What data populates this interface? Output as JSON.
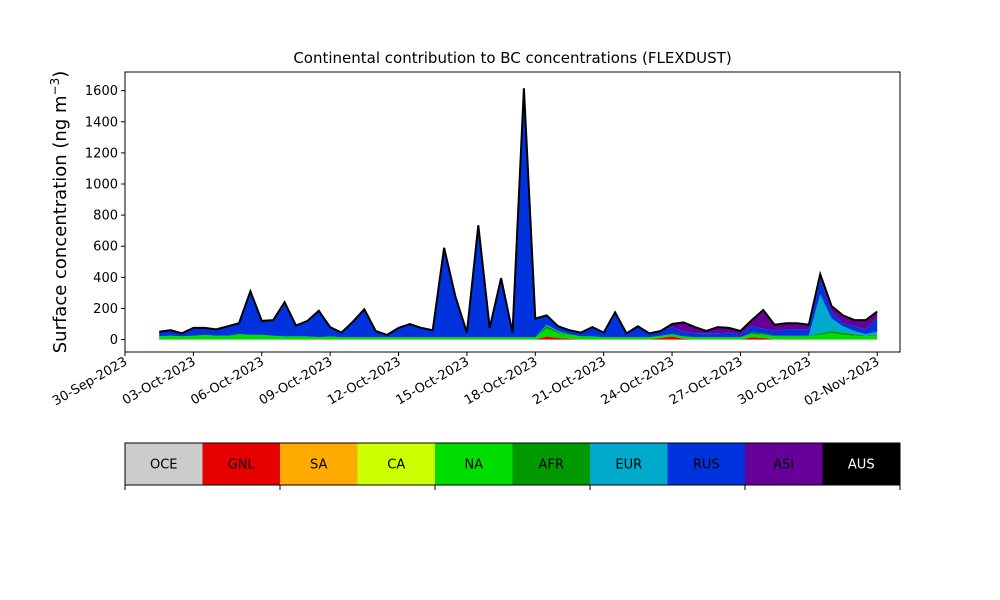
{
  "chart_data": {
    "type": "area",
    "stacked": true,
    "title": "Continental contribution to BC concentrations (FLEXDUST)",
    "ylabel_main": "Surface concentration (ng m",
    "ylabel_sup": "−3",
    "ylabel_close": ")",
    "xlabel": "",
    "ylim": [
      -80,
      1720
    ],
    "xlim": [
      "2023-09-30",
      "2023-11-03"
    ],
    "yticks": [
      0,
      200,
      400,
      600,
      800,
      1000,
      1200,
      1400,
      1600
    ],
    "xticks": [
      "30-Sep-2023",
      "03-Oct-2023",
      "06-Oct-2023",
      "09-Oct-2023",
      "12-Oct-2023",
      "15-Oct-2023",
      "18-Oct-2023",
      "21-Oct-2023",
      "24-Oct-2023",
      "27-Oct-2023",
      "30-Oct-2023",
      "02-Nov-2023"
    ],
    "grid": false,
    "legend_position": "colorbar-below",
    "x": [
      "2023-10-01T12:00",
      "2023-10-02T00:00",
      "2023-10-02T12:00",
      "2023-10-03T00:00",
      "2023-10-03T12:00",
      "2023-10-04T00:00",
      "2023-10-04T12:00",
      "2023-10-05T00:00",
      "2023-10-05T12:00",
      "2023-10-06T00:00",
      "2023-10-06T12:00",
      "2023-10-07T00:00",
      "2023-10-07T12:00",
      "2023-10-08T00:00",
      "2023-10-08T12:00",
      "2023-10-09T00:00",
      "2023-10-09T12:00",
      "2023-10-10T00:00",
      "2023-10-10T12:00",
      "2023-10-11T00:00",
      "2023-10-11T12:00",
      "2023-10-12T00:00",
      "2023-10-12T12:00",
      "2023-10-13T00:00",
      "2023-10-13T12:00",
      "2023-10-14T00:00",
      "2023-10-14T12:00",
      "2023-10-15T00:00",
      "2023-10-15T12:00",
      "2023-10-16T00:00",
      "2023-10-16T12:00",
      "2023-10-17T00:00",
      "2023-10-17T12:00",
      "2023-10-18T00:00",
      "2023-10-18T12:00",
      "2023-10-19T00:00",
      "2023-10-19T12:00",
      "2023-10-20T00:00",
      "2023-10-20T12:00",
      "2023-10-21T00:00",
      "2023-10-21T12:00",
      "2023-10-22T00:00",
      "2023-10-22T12:00",
      "2023-10-23T00:00",
      "2023-10-23T12:00",
      "2023-10-24T00:00",
      "2023-10-24T12:00",
      "2023-10-25T00:00",
      "2023-10-25T12:00",
      "2023-10-26T00:00",
      "2023-10-26T12:00",
      "2023-10-27T00:00",
      "2023-10-27T12:00",
      "2023-10-28T00:00",
      "2023-10-28T12:00",
      "2023-10-29T00:00",
      "2023-10-29T12:00",
      "2023-10-30T00:00",
      "2023-10-30T12:00",
      "2023-10-31T00:00",
      "2023-10-31T12:00",
      "2023-11-01T00:00",
      "2023-11-01T12:00",
      "2023-11-02T00:00"
    ],
    "series": [
      {
        "name": "OCE",
        "color": "#cccccc",
        "values": [
          0,
          0,
          0,
          0,
          0,
          0,
          0,
          0,
          0,
          0,
          0,
          0,
          0,
          0,
          0,
          0,
          0,
          0,
          0,
          0,
          0,
          0,
          0,
          0,
          0,
          0,
          0,
          0,
          0,
          0,
          0,
          0,
          0,
          0,
          0,
          0,
          0,
          0,
          0,
          0,
          0,
          0,
          0,
          0,
          0,
          0,
          0,
          0,
          0,
          0,
          0,
          0,
          0,
          0,
          0,
          0,
          0,
          0,
          0,
          0,
          0,
          0,
          0,
          0
        ]
      },
      {
        "name": "GNL",
        "color": "#e60000",
        "values": [
          0,
          0,
          0,
          0,
          0,
          0,
          0,
          0,
          0,
          0,
          0,
          0,
          0,
          0,
          0,
          0,
          0,
          0,
          0,
          0,
          0,
          0,
          0,
          0,
          0,
          0,
          0,
          0,
          0,
          0,
          0,
          0,
          0,
          0,
          20,
          10,
          5,
          0,
          0,
          0,
          0,
          0,
          0,
          0,
          10,
          20,
          5,
          0,
          0,
          0,
          0,
          0,
          15,
          10,
          0,
          0,
          0,
          0,
          0,
          0,
          0,
          0,
          0,
          0
        ]
      },
      {
        "name": "SA",
        "color": "#ffaa00",
        "values": [
          0,
          0,
          0,
          0,
          0,
          0,
          0,
          0,
          0,
          0,
          0,
          0,
          0,
          0,
          0,
          0,
          0,
          0,
          0,
          0,
          0,
          0,
          0,
          0,
          0,
          0,
          0,
          0,
          0,
          0,
          0,
          0,
          0,
          0,
          0,
          0,
          0,
          0,
          0,
          0,
          0,
          0,
          0,
          0,
          0,
          0,
          0,
          0,
          0,
          0,
          0,
          0,
          0,
          0,
          0,
          0,
          0,
          0,
          0,
          0,
          0,
          0,
          0,
          0
        ]
      },
      {
        "name": "CA",
        "color": "#ccff00",
        "values": [
          0,
          0,
          0,
          0,
          0,
          0,
          0,
          0,
          0,
          0,
          0,
          0,
          0,
          0,
          0,
          0,
          0,
          0,
          0,
          0,
          0,
          0,
          0,
          0,
          0,
          0,
          0,
          0,
          0,
          0,
          0,
          0,
          0,
          0,
          0,
          0,
          0,
          0,
          0,
          0,
          0,
          0,
          0,
          0,
          0,
          0,
          0,
          0,
          0,
          0,
          0,
          0,
          0,
          0,
          0,
          0,
          0,
          0,
          0,
          0,
          0,
          0,
          0,
          0
        ]
      },
      {
        "name": "NA",
        "color": "#00dd00",
        "values": [
          20,
          25,
          20,
          25,
          30,
          25,
          25,
          35,
          30,
          30,
          25,
          20,
          20,
          20,
          15,
          20,
          15,
          15,
          15,
          15,
          15,
          15,
          15,
          15,
          15,
          15,
          15,
          15,
          15,
          15,
          15,
          15,
          15,
          15,
          50,
          30,
          25,
          20,
          20,
          15,
          15,
          15,
          15,
          15,
          15,
          15,
          15,
          15,
          15,
          15,
          15,
          15,
          20,
          20,
          20,
          20,
          20,
          20,
          30,
          40,
          30,
          25,
          20,
          25
        ]
      },
      {
        "name": "AFR",
        "color": "#009900",
        "values": [
          0,
          0,
          0,
          0,
          0,
          0,
          0,
          0,
          0,
          0,
          0,
          0,
          0,
          0,
          0,
          0,
          0,
          0,
          0,
          0,
          0,
          0,
          0,
          0,
          0,
          0,
          0,
          0,
          0,
          0,
          0,
          0,
          0,
          0,
          20,
          10,
          5,
          0,
          0,
          0,
          0,
          0,
          0,
          0,
          0,
          0,
          0,
          0,
          0,
          0,
          0,
          0,
          10,
          10,
          5,
          5,
          5,
          5,
          10,
          15,
          15,
          10,
          5,
          5
        ]
      },
      {
        "name": "EUR",
        "color": "#00aacc",
        "values": [
          0,
          0,
          0,
          0,
          0,
          0,
          0,
          0,
          0,
          0,
          0,
          0,
          0,
          0,
          0,
          0,
          0,
          0,
          0,
          0,
          0,
          0,
          0,
          0,
          0,
          0,
          0,
          0,
          0,
          0,
          0,
          0,
          0,
          0,
          5,
          5,
          0,
          0,
          0,
          0,
          0,
          0,
          0,
          0,
          0,
          0,
          0,
          0,
          0,
          0,
          0,
          0,
          0,
          0,
          0,
          0,
          0,
          0,
          250,
          80,
          40,
          20,
          10,
          20
        ]
      },
      {
        "name": "RUS",
        "color": "#0033dd",
        "values": [
          30,
          35,
          20,
          50,
          45,
          40,
          60,
          70,
          280,
          90,
          100,
          220,
          70,
          100,
          170,
          60,
          30,
          100,
          180,
          40,
          15,
          60,
          85,
          60,
          45,
          575,
          260,
          30,
          720,
          60,
          380,
          30,
          1600,
          120,
          60,
          30,
          25,
          25,
          60,
          30,
          160,
          25,
          70,
          25,
          30,
          45,
          30,
          25,
          25,
          25,
          30,
          20,
          40,
          30,
          30,
          40,
          40,
          40,
          100,
          40,
          20,
          30,
          30,
          90
        ]
      },
      {
        "name": "ASI",
        "color": "#660099",
        "values": [
          0,
          0,
          0,
          0,
          0,
          0,
          0,
          0,
          0,
          0,
          0,
          0,
          0,
          0,
          0,
          0,
          0,
          0,
          0,
          0,
          0,
          0,
          0,
          0,
          0,
          0,
          0,
          0,
          0,
          0,
          0,
          0,
          0,
          0,
          0,
          0,
          0,
          0,
          0,
          0,
          0,
          0,
          0,
          0,
          0,
          20,
          60,
          40,
          15,
          40,
          30,
          20,
          40,
          120,
          40,
          40,
          40,
          30,
          30,
          40,
          50,
          40,
          60,
          40
        ]
      },
      {
        "name": "AUS",
        "color": "#000000",
        "values": [
          0,
          0,
          0,
          0,
          0,
          0,
          0,
          0,
          0,
          0,
          0,
          0,
          0,
          0,
          0,
          0,
          0,
          0,
          0,
          0,
          0,
          0,
          0,
          0,
          0,
          0,
          0,
          0,
          0,
          0,
          0,
          0,
          0,
          0,
          0,
          0,
          0,
          0,
          0,
          0,
          0,
          0,
          0,
          0,
          0,
          0,
          0,
          0,
          0,
          0,
          0,
          0,
          0,
          0,
          0,
          0,
          0,
          0,
          0,
          0,
          0,
          0,
          0,
          0
        ]
      }
    ],
    "legend": [
      {
        "label": "OCE",
        "color": "#cccccc",
        "text_color": "#000000"
      },
      {
        "label": "GNL",
        "color": "#e60000",
        "text_color": "#000000"
      },
      {
        "label": "SA",
        "color": "#ffaa00",
        "text_color": "#000000"
      },
      {
        "label": "CA",
        "color": "#ccff00",
        "text_color": "#000000"
      },
      {
        "label": "NA",
        "color": "#00dd00",
        "text_color": "#000000"
      },
      {
        "label": "AFR",
        "color": "#009900",
        "text_color": "#000000"
      },
      {
        "label": "EUR",
        "color": "#00aacc",
        "text_color": "#000000"
      },
      {
        "label": "RUS",
        "color": "#0033dd",
        "text_color": "#000000"
      },
      {
        "label": "ASI",
        "color": "#660099",
        "text_color": "#000000"
      },
      {
        "label": "AUS",
        "color": "#000000",
        "text_color": "#ffffff"
      }
    ]
  }
}
